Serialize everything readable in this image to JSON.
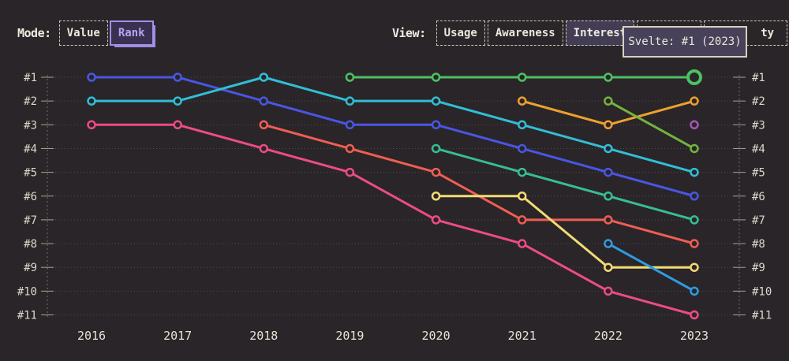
{
  "controls": {
    "mode_label": "Mode:",
    "mode_options": [
      {
        "label": "Value",
        "selected": false
      },
      {
        "label": "Rank",
        "selected": true
      }
    ],
    "view_label": "View:",
    "view_options": [
      {
        "label": "Usage",
        "selected": false
      },
      {
        "label": "Awareness",
        "selected": false
      },
      {
        "label": "Interest",
        "selected": true
      },
      {
        "label": "",
        "selected": false
      },
      {
        "label": "ty",
        "selected": false
      }
    ]
  },
  "tooltip": {
    "text": "Svelte: #1 (2023)"
  },
  "colors": {
    "background": "#2a2528",
    "grid_dots": "#514c4c",
    "axis_line": "#716c68",
    "tick": "#a8a296",
    "rank_label": "#dcd7ca",
    "year_label": "#e8e3d6",
    "accent_purple": "#b7a3f2"
  },
  "chart_data": {
    "type": "line",
    "mode": "rank",
    "x": [
      2016,
      2017,
      2018,
      2019,
      2020,
      2021,
      2022,
      2023
    ],
    "y_axis_labels": [
      "#1",
      "#2",
      "#3",
      "#4",
      "#5",
      "#6",
      "#7",
      "#8",
      "#9",
      "#10",
      "#11"
    ],
    "ylim": [
      1,
      11
    ],
    "grid": "dotted-horizontal",
    "legend": "none",
    "highlight": {
      "series": "svelte",
      "year": 2023,
      "rank": 1
    },
    "series": [
      {
        "name": "indigo",
        "color": "#4956e3",
        "years": [
          2016,
          2017,
          2018,
          2019,
          2020,
          2021,
          2022,
          2023
        ],
        "ranks": [
          1,
          1,
          2,
          3,
          3,
          4,
          5,
          6
        ]
      },
      {
        "name": "cyan",
        "color": "#31bed6",
        "years": [
          2016,
          2017,
          2018,
          2019,
          2020,
          2021,
          2022,
          2023
        ],
        "ranks": [
          2,
          2,
          1,
          2,
          2,
          3,
          4,
          5
        ]
      },
      {
        "name": "pink",
        "color": "#ec4c82",
        "years": [
          2016,
          2017,
          2018,
          2019,
          2020,
          2021,
          2022,
          2023
        ],
        "ranks": [
          3,
          3,
          4,
          5,
          7,
          8,
          10,
          11
        ]
      },
      {
        "name": "salmon",
        "color": "#ee5e54",
        "years": [
          2018,
          2019,
          2020,
          2021,
          2022,
          2023
        ],
        "ranks": [
          3,
          4,
          5,
          7,
          7,
          8
        ]
      },
      {
        "name": "svelte",
        "color": "#4cc162",
        "years": [
          2019,
          2020,
          2021,
          2022,
          2023
        ],
        "ranks": [
          1,
          1,
          1,
          1,
          1
        ]
      },
      {
        "name": "teal",
        "color": "#38bd93",
        "years": [
          2020,
          2021,
          2022,
          2023
        ],
        "ranks": [
          4,
          5,
          6,
          7
        ]
      },
      {
        "name": "yellow",
        "color": "#f2db72",
        "years": [
          2020,
          2021,
          2022,
          2023
        ],
        "ranks": [
          6,
          6,
          9,
          9
        ]
      },
      {
        "name": "orange",
        "color": "#eea02f",
        "years": [
          2021,
          2022,
          2023
        ],
        "ranks": [
          2,
          3,
          2
        ]
      },
      {
        "name": "lime",
        "color": "#73b33f",
        "years": [
          2022,
          2023
        ],
        "ranks": [
          2,
          4
        ]
      },
      {
        "name": "sky",
        "color": "#2e9ce2",
        "years": [
          2022,
          2023
        ],
        "ranks": [
          8,
          10
        ]
      },
      {
        "name": "violet",
        "color": "#a457b5",
        "years": [
          2023
        ],
        "ranks": [
          3
        ]
      }
    ]
  }
}
